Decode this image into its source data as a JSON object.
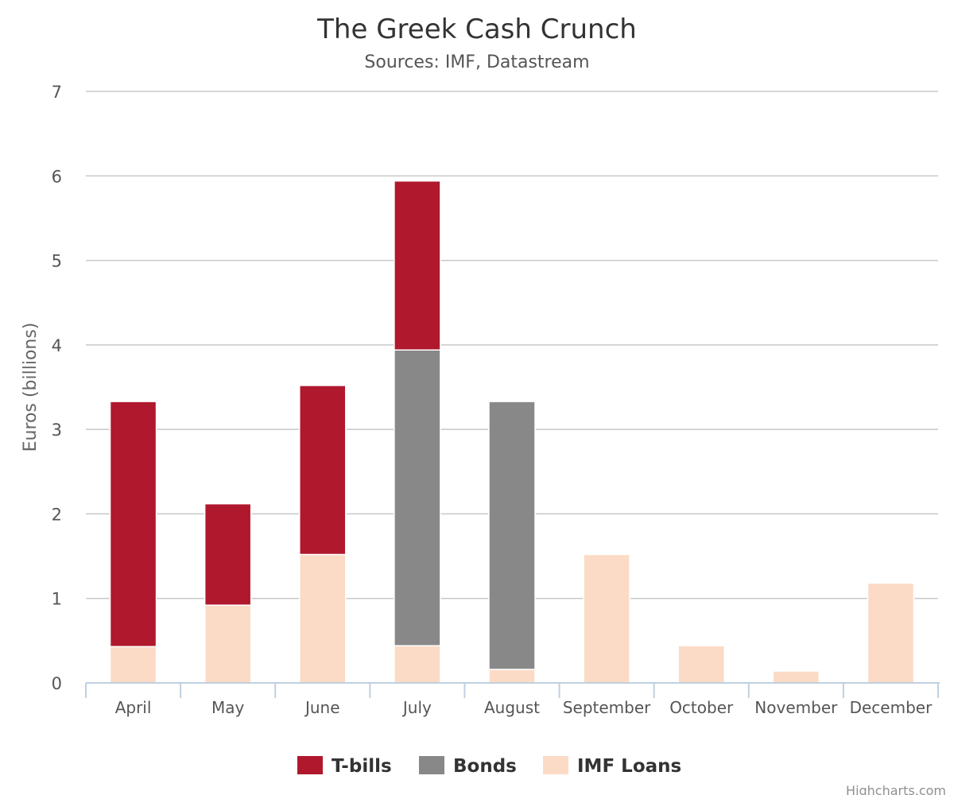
{
  "chart_data": {
    "type": "bar",
    "stacked": true,
    "title": "The Greek Cash Crunch",
    "subtitle": "Sources: IMF, Datastream",
    "xlabel": "",
    "ylabel": "Euros (billions)",
    "ylim": [
      0,
      7
    ],
    "yticks": [
      "0",
      "1",
      "2",
      "3",
      "4",
      "5",
      "6",
      "7"
    ],
    "grid": true,
    "legend_position": "bottom-center",
    "categories": [
      "April",
      "May",
      "June",
      "July",
      "August",
      "September",
      "October",
      "November",
      "December"
    ],
    "series": [
      {
        "name": "IMF Loans",
        "color": "#fbdbc6",
        "values": [
          0.43,
          0.92,
          1.52,
          0.44,
          0.16,
          1.52,
          0.44,
          0.14,
          1.18
        ]
      },
      {
        "name": "Bonds",
        "color": "#888888",
        "values": [
          0,
          0,
          0,
          3.5,
          3.17,
          0,
          0,
          0,
          0
        ]
      },
      {
        "name": "T-bills",
        "color": "#b0182d",
        "values": [
          2.9,
          1.2,
          2.0,
          2.0,
          0,
          0,
          0,
          0,
          0
        ]
      }
    ],
    "legend_order": [
      "T-bills",
      "Bonds",
      "IMF Loans"
    ],
    "credit": "Highcharts.com"
  }
}
